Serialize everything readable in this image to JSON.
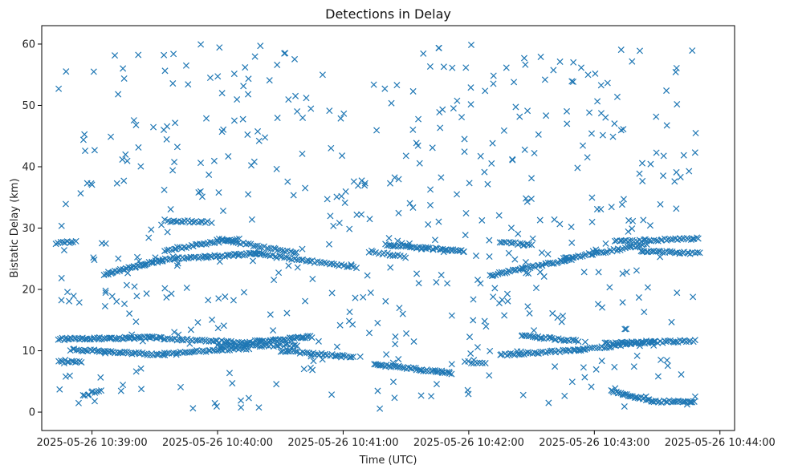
{
  "chart_data": {
    "type": "scatter",
    "title": "Detections in Delay",
    "xlabel": "Time (UTC)",
    "ylabel": "Bistatic Delay (km)",
    "marker": "x",
    "color": "#1f77b4",
    "x_unit": "seconds after 2025-05-26 10:39:00",
    "xlim": [
      -24,
      307
    ],
    "ylim": [
      -3,
      63
    ],
    "x_ticks": [
      {
        "value": 0,
        "label": "2025-05-26 10:39:00"
      },
      {
        "value": 60,
        "label": "2025-05-26 10:40:00"
      },
      {
        "value": 120,
        "label": "2025-05-26 10:41:00"
      },
      {
        "value": 180,
        "label": "2025-05-26 10:42:00"
      },
      {
        "value": 240,
        "label": "2025-05-26 10:43:00"
      },
      {
        "value": 300,
        "label": "2025-05-26 10:44:00"
      }
    ],
    "y_ticks": [
      {
        "value": 0,
        "label": "0"
      },
      {
        "value": 10,
        "label": "10"
      },
      {
        "value": 20,
        "label": "20"
      },
      {
        "value": 30,
        "label": "30"
      },
      {
        "value": 40,
        "label": "40"
      },
      {
        "value": 50,
        "label": "50"
      },
      {
        "value": 60,
        "label": "60"
      }
    ],
    "grid": false,
    "series": [
      {
        "tracks": [
          {
            "x0": -16,
            "x1": 33,
            "y0": 11.9,
            "y1": 12.2,
            "n": 60
          },
          {
            "x0": 33,
            "x1": 75,
            "y0": 12.0,
            "y1": 11.3,
            "n": 40
          },
          {
            "x0": 75,
            "x1": 105,
            "y0": 11.4,
            "y1": 12.3,
            "n": 40
          },
          {
            "x0": 205,
            "x1": 232,
            "y0": 12.5,
            "y1": 11.6,
            "n": 30
          },
          {
            "x0": 245,
            "x1": 288,
            "y0": 11.2,
            "y1": 11.6,
            "n": 45
          },
          {
            "x0": -16,
            "x1": -5,
            "y0": 8.4,
            "y1": 8.2,
            "n": 12
          },
          {
            "x0": -10,
            "x1": 35,
            "y0": 10.2,
            "y1": 9.3,
            "n": 50
          },
          {
            "x0": 35,
            "x1": 75,
            "y0": 9.6,
            "y1": 10.4,
            "n": 40
          },
          {
            "x0": 60,
            "x1": 98,
            "y0": 10.8,
            "y1": 10.9,
            "n": 35
          },
          {
            "x0": 90,
            "x1": 125,
            "y0": 10.0,
            "y1": 9.0,
            "n": 35
          },
          {
            "x0": 135,
            "x1": 172,
            "y0": 7.8,
            "y1": 6.3,
            "n": 45
          },
          {
            "x0": 178,
            "x1": 188,
            "y0": 8.2,
            "y1": 8.0,
            "n": 8
          },
          {
            "x0": 195,
            "x1": 235,
            "y0": 9.3,
            "y1": 10.2,
            "n": 40
          },
          {
            "x0": 230,
            "x1": 268,
            "y0": 10.0,
            "y1": 11.6,
            "n": 35
          },
          {
            "x0": 248,
            "x1": 266,
            "y0": 3.4,
            "y1": 2.0,
            "n": 25
          },
          {
            "x0": 267,
            "x1": 288,
            "y0": 1.7,
            "y1": 1.8,
            "n": 25
          },
          {
            "x0": -4,
            "x1": 4,
            "y0": 2.7,
            "y1": 3.6,
            "n": 10
          },
          {
            "x0": 6,
            "x1": 34,
            "y0": 22.5,
            "y1": 24.8,
            "n": 40
          },
          {
            "x0": 34,
            "x1": 82,
            "y0": 24.9,
            "y1": 25.9,
            "n": 50
          },
          {
            "x0": 76,
            "x1": 126,
            "y0": 25.9,
            "y1": 23.6,
            "n": 45
          },
          {
            "x0": 60,
            "x1": 98,
            "y0": 28.2,
            "y1": 25.9,
            "n": 35
          },
          {
            "x0": 35,
            "x1": 70,
            "y0": 26.4,
            "y1": 28.3,
            "n": 35
          },
          {
            "x0": 35,
            "x1": 55,
            "y0": 31.2,
            "y1": 31.0,
            "n": 20
          },
          {
            "x0": 140,
            "x1": 178,
            "y0": 27.3,
            "y1": 26.2,
            "n": 45
          },
          {
            "x0": 190,
            "x1": 230,
            "y0": 22.3,
            "y1": 25.0,
            "n": 45
          },
          {
            "x0": 225,
            "x1": 265,
            "y0": 25.0,
            "y1": 27.3,
            "n": 40
          },
          {
            "x0": 250,
            "x1": 290,
            "y0": 27.8,
            "y1": 28.3,
            "n": 40
          },
          {
            "x0": 262,
            "x1": 290,
            "y0": 26.2,
            "y1": 25.9,
            "n": 30
          },
          {
            "x0": 195,
            "x1": 210,
            "y0": 27.8,
            "y1": 27.2,
            "n": 15
          },
          {
            "x0": -17,
            "x1": -8,
            "y0": 27.6,
            "y1": 27.8,
            "n": 10
          },
          {
            "x0": 132,
            "x1": 150,
            "y0": 26.2,
            "y1": 25.3,
            "n": 15
          }
        ],
        "random_points": 520,
        "y_range": [
          0.5,
          60
        ]
      }
    ]
  }
}
